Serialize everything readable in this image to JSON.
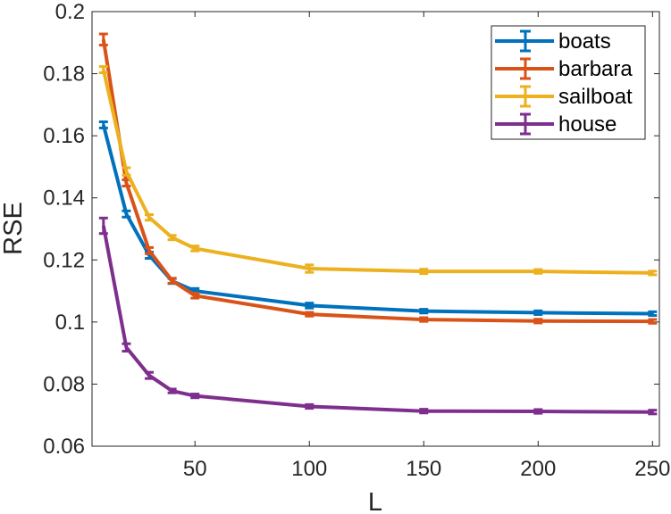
{
  "chart_data": {
    "type": "line",
    "title": "",
    "xlabel": "L",
    "ylabel": "RSE",
    "xlim": [
      5,
      253
    ],
    "ylim": [
      0.06,
      0.2
    ],
    "xticks": [
      50,
      100,
      150,
      200,
      250
    ],
    "xtick_labels": [
      "50",
      "100",
      "150",
      "200",
      "250"
    ],
    "yticks": [
      0.06,
      0.08,
      0.1,
      0.12,
      0.14,
      0.16,
      0.18,
      0.2
    ],
    "ytick_labels": [
      "0.06",
      "0.08",
      "0.1",
      "0.12",
      "0.14",
      "0.16",
      "0.18",
      "0.2"
    ],
    "grid": false,
    "legend_position": "top-right",
    "x": [
      10,
      20,
      30,
      40,
      50,
      100,
      150,
      200,
      250
    ],
    "series": [
      {
        "name": "boats",
        "color": "#0072BD",
        "values": [
          0.1635,
          0.1348,
          0.1215,
          0.1132,
          0.11,
          0.1053,
          0.1035,
          0.103,
          0.1027
        ],
        "errors": [
          0.001,
          0.001,
          0.001,
          0.0008,
          0.0008,
          0.0008,
          0.0006,
          0.0006,
          0.0006
        ]
      },
      {
        "name": "barbara",
        "color": "#D95319",
        "values": [
          0.191,
          0.1448,
          0.123,
          0.1133,
          0.1085,
          0.1025,
          0.1008,
          0.1003,
          0.1002
        ],
        "errors": [
          0.0018,
          0.001,
          0.001,
          0.0008,
          0.0008,
          0.0006,
          0.0006,
          0.0006,
          0.0006
        ]
      },
      {
        "name": "sailboat",
        "color": "#EDB120",
        "values": [
          0.1813,
          0.1485,
          0.1337,
          0.1272,
          0.1237,
          0.1172,
          0.1163,
          0.1163,
          0.1158
        ],
        "errors": [
          0.001,
          0.0012,
          0.0009,
          0.0007,
          0.0008,
          0.0012,
          0.0007,
          0.0006,
          0.0006
        ]
      },
      {
        "name": "house",
        "color": "#7E2F8E",
        "values": [
          0.131,
          0.0918,
          0.0828,
          0.0778,
          0.0762,
          0.0728,
          0.0713,
          0.0712,
          0.071
        ],
        "errors": [
          0.0025,
          0.0012,
          0.001,
          0.0006,
          0.0006,
          0.0006,
          0.0006,
          0.0006,
          0.0006
        ]
      }
    ]
  }
}
